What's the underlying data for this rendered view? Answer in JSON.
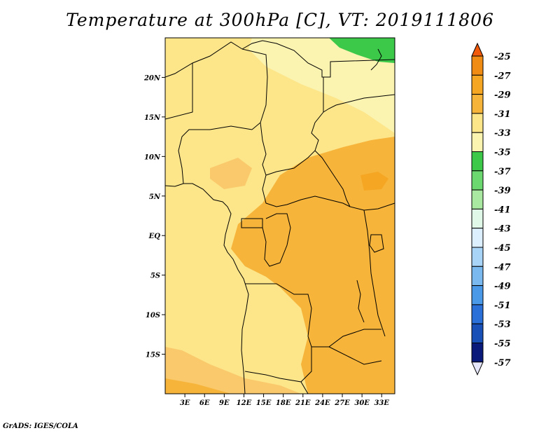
{
  "title": "Temperature at 300hPa [C], VT: 2019111806",
  "credit": "GrADS: IGES/COLA",
  "map": {
    "lon_range": [
      0,
      35
    ],
    "lat_range": [
      -20,
      25
    ],
    "lon_ticks": [
      "3E",
      "6E",
      "9E",
      "12E",
      "15E",
      "18E",
      "21E",
      "24E",
      "27E",
      "30E",
      "33E"
    ],
    "lat_ticks": [
      "20N",
      "15N",
      "10N",
      "5N",
      "EQ",
      "5S",
      "10S",
      "15S"
    ],
    "dominant_fills": [
      "#fde68a",
      "#f6b43a",
      "#fbf3b0",
      "#3cc94a",
      "#f9c96b"
    ]
  },
  "colorbar": {
    "labels": [
      "-25",
      "-27",
      "-29",
      "-31",
      "-33",
      "-35",
      "-37",
      "-39",
      "-41",
      "-43",
      "-45",
      "-47",
      "-49",
      "-51",
      "-53",
      "-55",
      "-57"
    ],
    "colors": [
      "#f05a0a",
      "#f08c14",
      "#f5a623",
      "#f6b43a",
      "#fde68a",
      "#fbf3b0",
      "#3cc94a",
      "#6ad86e",
      "#a8e8a0",
      "#e0f8e8",
      "#dcefff",
      "#a8d4f8",
      "#7ab8f0",
      "#4a98e8",
      "#2a70d8",
      "#1850b8",
      "#0a1a7a",
      "#e6e6fa"
    ]
  }
}
